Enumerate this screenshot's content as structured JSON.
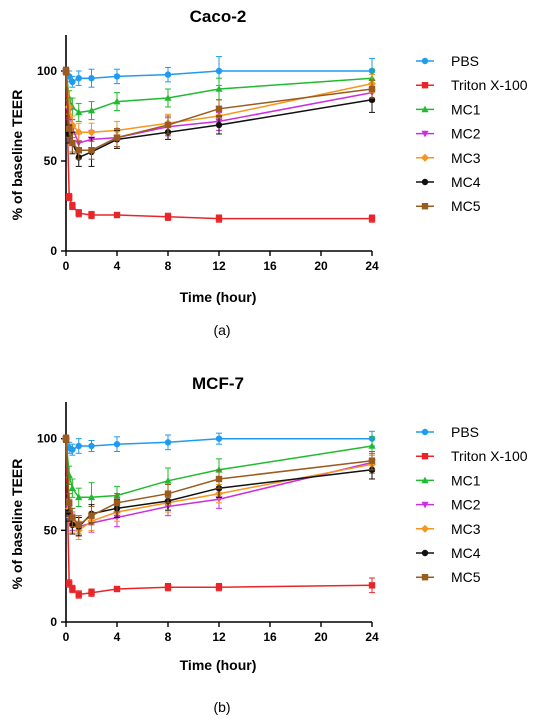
{
  "chart_data": [
    {
      "type": "line",
      "title": "Caco-2",
      "xlabel": "Time (hour)",
      "ylabel": "% of baseline TEER",
      "caption": "(a)",
      "x_ticks": [
        "0",
        "4",
        "8",
        "12",
        "16",
        "20",
        "24"
      ],
      "y_ticks": [
        "0",
        "50",
        "100"
      ],
      "xlim": [
        0,
        24
      ],
      "ylim": [
        0,
        120
      ],
      "legend_position": "right",
      "series": [
        {
          "name": "PBS",
          "color": "#1f9bef",
          "marker": "circle",
          "x": [
            0,
            0.25,
            0.5,
            1,
            2,
            4,
            8,
            12,
            24
          ],
          "y": [
            100,
            97,
            94,
            96,
            96,
            97,
            98,
            100,
            100
          ],
          "err": [
            2,
            3,
            3,
            4,
            5,
            4,
            4,
            8,
            7
          ]
        },
        {
          "name": "Triton X-100",
          "color": "#e8262a",
          "marker": "square",
          "x": [
            0,
            0.25,
            0.5,
            1,
            2,
            4,
            8,
            12,
            24
          ],
          "y": [
            100,
            30,
            25,
            21,
            20,
            20,
            19,
            18,
            18
          ],
          "err": [
            2,
            2,
            2,
            2,
            2,
            1,
            2,
            2,
            2
          ]
        },
        {
          "name": "MC1",
          "color": "#1fbb2e",
          "marker": "triangle-up",
          "x": [
            0,
            0.25,
            0.5,
            1,
            2,
            4,
            8,
            12,
            24
          ],
          "y": [
            100,
            85,
            80,
            77,
            78,
            83,
            85,
            90,
            96
          ],
          "err": [
            2,
            4,
            5,
            5,
            5,
            5,
            5,
            6,
            5
          ]
        },
        {
          "name": "MC2",
          "color": "#cc2ee0",
          "marker": "triangle-down",
          "x": [
            0,
            0.25,
            0.5,
            1,
            2,
            4,
            8,
            12,
            24
          ],
          "y": [
            100,
            78,
            68,
            60,
            62,
            63,
            69,
            72,
            88
          ],
          "err": [
            2,
            4,
            5,
            5,
            5,
            5,
            5,
            5,
            5
          ]
        },
        {
          "name": "MC3",
          "color": "#f5961e",
          "marker": "diamond",
          "x": [
            0,
            0.25,
            0.5,
            1,
            2,
            4,
            8,
            12,
            24
          ],
          "y": [
            100,
            80,
            70,
            66,
            66,
            67,
            71,
            75,
            93
          ],
          "err": [
            2,
            4,
            5,
            5,
            5,
            5,
            5,
            5,
            5
          ]
        },
        {
          "name": "MC4",
          "color": "#111111",
          "marker": "circle",
          "x": [
            0,
            0.25,
            0.5,
            1,
            2,
            4,
            8,
            12,
            24
          ],
          "y": [
            100,
            65,
            60,
            52,
            55,
            62,
            66,
            70,
            84
          ],
          "err": [
            2,
            5,
            6,
            5,
            8,
            5,
            4,
            5,
            7
          ]
        },
        {
          "name": "MC5",
          "color": "#9a5b1e",
          "marker": "square",
          "x": [
            0,
            0.25,
            0.5,
            1,
            2,
            4,
            8,
            12,
            24
          ],
          "y": [
            100,
            68,
            60,
            56,
            56,
            63,
            70,
            79,
            90
          ],
          "err": [
            2,
            5,
            5,
            5,
            5,
            5,
            5,
            5,
            5
          ]
        }
      ]
    },
    {
      "type": "line",
      "title": "MCF-7",
      "xlabel": "Time (hour)",
      "ylabel": "% of baseline TEER",
      "caption": "(b)",
      "x_ticks": [
        "0",
        "4",
        "8",
        "12",
        "16",
        "20",
        "24"
      ],
      "y_ticks": [
        "0",
        "50",
        "100"
      ],
      "xlim": [
        0,
        24
      ],
      "ylim": [
        0,
        120
      ],
      "legend_position": "right",
      "series": [
        {
          "name": "PBS",
          "color": "#1f9bef",
          "marker": "circle",
          "x": [
            0,
            0.25,
            0.5,
            1,
            2,
            4,
            8,
            12,
            24
          ],
          "y": [
            100,
            95,
            94,
            96,
            96,
            97,
            98,
            100,
            100
          ],
          "err": [
            2,
            3,
            3,
            4,
            3,
            4,
            4,
            3,
            4
          ]
        },
        {
          "name": "Triton X-100",
          "color": "#e8262a",
          "marker": "square",
          "x": [
            0,
            0.25,
            0.5,
            1,
            2,
            4,
            8,
            12,
            24
          ],
          "y": [
            100,
            21,
            18,
            15,
            16,
            18,
            19,
            19,
            20
          ],
          "err": [
            2,
            2,
            2,
            2,
            2,
            1,
            2,
            2,
            4
          ]
        },
        {
          "name": "MC1",
          "color": "#1fbb2e",
          "marker": "triangle-up",
          "x": [
            0,
            0.25,
            0.5,
            1,
            2,
            4,
            8,
            12,
            24
          ],
          "y": [
            100,
            80,
            73,
            68,
            68,
            69,
            77,
            83,
            96
          ],
          "err": [
            2,
            5,
            5,
            5,
            8,
            5,
            7,
            6,
            5
          ]
        },
        {
          "name": "MC2",
          "color": "#cc2ee0",
          "marker": "triangle-down",
          "x": [
            0,
            0.25,
            0.5,
            1,
            2,
            4,
            8,
            12,
            24
          ],
          "y": [
            100,
            62,
            55,
            52,
            54,
            57,
            63,
            67,
            87
          ],
          "err": [
            2,
            5,
            5,
            5,
            5,
            5,
            5,
            5,
            5
          ]
        },
        {
          "name": "MC3",
          "color": "#f5961e",
          "marker": "diamond",
          "x": [
            0,
            0.25,
            0.5,
            1,
            2,
            4,
            8,
            12,
            24
          ],
          "y": [
            100,
            62,
            54,
            50,
            55,
            60,
            65,
            70,
            86
          ],
          "err": [
            2,
            5,
            5,
            5,
            5,
            5,
            5,
            5,
            5
          ]
        },
        {
          "name": "MC4",
          "color": "#111111",
          "marker": "circle",
          "x": [
            0,
            0.25,
            0.5,
            1,
            2,
            4,
            8,
            12,
            24
          ],
          "y": [
            100,
            60,
            53,
            52,
            59,
            62,
            66,
            73,
            83
          ],
          "err": [
            2,
            5,
            5,
            5,
            5,
            5,
            5,
            5,
            5
          ]
        },
        {
          "name": "MC5",
          "color": "#9a5b1e",
          "marker": "square",
          "x": [
            0,
            0.25,
            0.5,
            1,
            2,
            4,
            8,
            12,
            24
          ],
          "y": [
            100,
            65,
            57,
            53,
            58,
            65,
            70,
            78,
            88
          ],
          "err": [
            2,
            5,
            5,
            5,
            5,
            5,
            5,
            5,
            5
          ]
        }
      ]
    }
  ]
}
